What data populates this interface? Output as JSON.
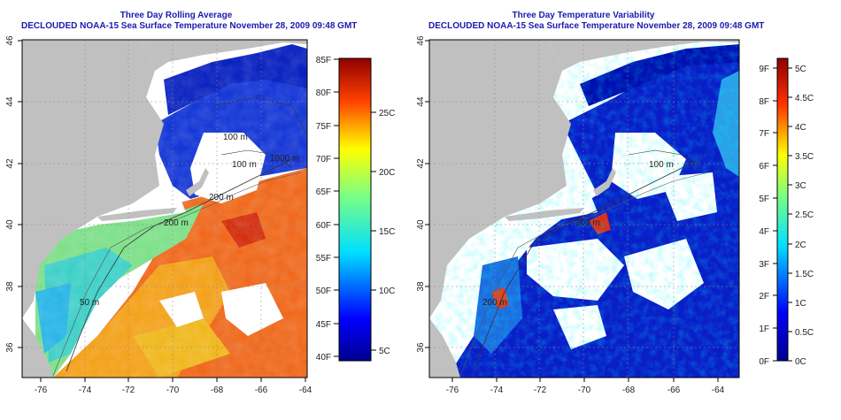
{
  "panels": [
    {
      "title_line1": "Three Day Rolling Average",
      "title_line2": "DECLOUDED NOAA-15 Sea Surface Temperature November 28, 2009 09:48 GMT",
      "x_ticks": [
        "-76",
        "-74",
        "-72",
        "-70",
        "-68",
        "-66",
        "-64"
      ],
      "y_ticks": [
        "36",
        "38",
        "40",
        "42",
        "44",
        "46"
      ],
      "colorbar_left_labels": [
        "85F",
        "80F",
        "75F",
        "70F",
        "65F",
        "60F",
        "55F",
        "50F",
        "45F",
        "40F"
      ],
      "colorbar_right_labels": [
        "25C",
        "20C",
        "15C",
        "10C",
        "5C"
      ],
      "contour_labels": [
        "100 m",
        "200 m",
        "100 m",
        "1000 m",
        "200 m",
        "50 m"
      ]
    },
    {
      "title_line1": "Three Day Temperature Variability",
      "title_line2": "DECLOUDED NOAA-15 Sea Surface Temperature November 28, 2009 09:48 GMT",
      "x_ticks": [
        "-76",
        "-74",
        "-72",
        "-70",
        "-68",
        "-66",
        "-64"
      ],
      "y_ticks": [
        "36",
        "38",
        "40",
        "42",
        "44",
        "46"
      ],
      "colorbar_left_labels": [
        "9F",
        "8F",
        "7F",
        "6F",
        "5F",
        "4F",
        "3F",
        "2F",
        "1F",
        "0F"
      ],
      "colorbar_right_labels": [
        "5C",
        "4.5C",
        "4C",
        "3.5C",
        "3C",
        "2.5C",
        "2C",
        "1.5C",
        "1C",
        "0.5C",
        "0C"
      ],
      "contour_labels": [
        "100 m",
        "200 m",
        "200 m"
      ]
    }
  ],
  "colors": {
    "land": "#c0c0c0",
    "title": "#1b1bb0",
    "warm": "#e8501a",
    "cold": "#0a22c8",
    "no_data": "#ffffff"
  }
}
